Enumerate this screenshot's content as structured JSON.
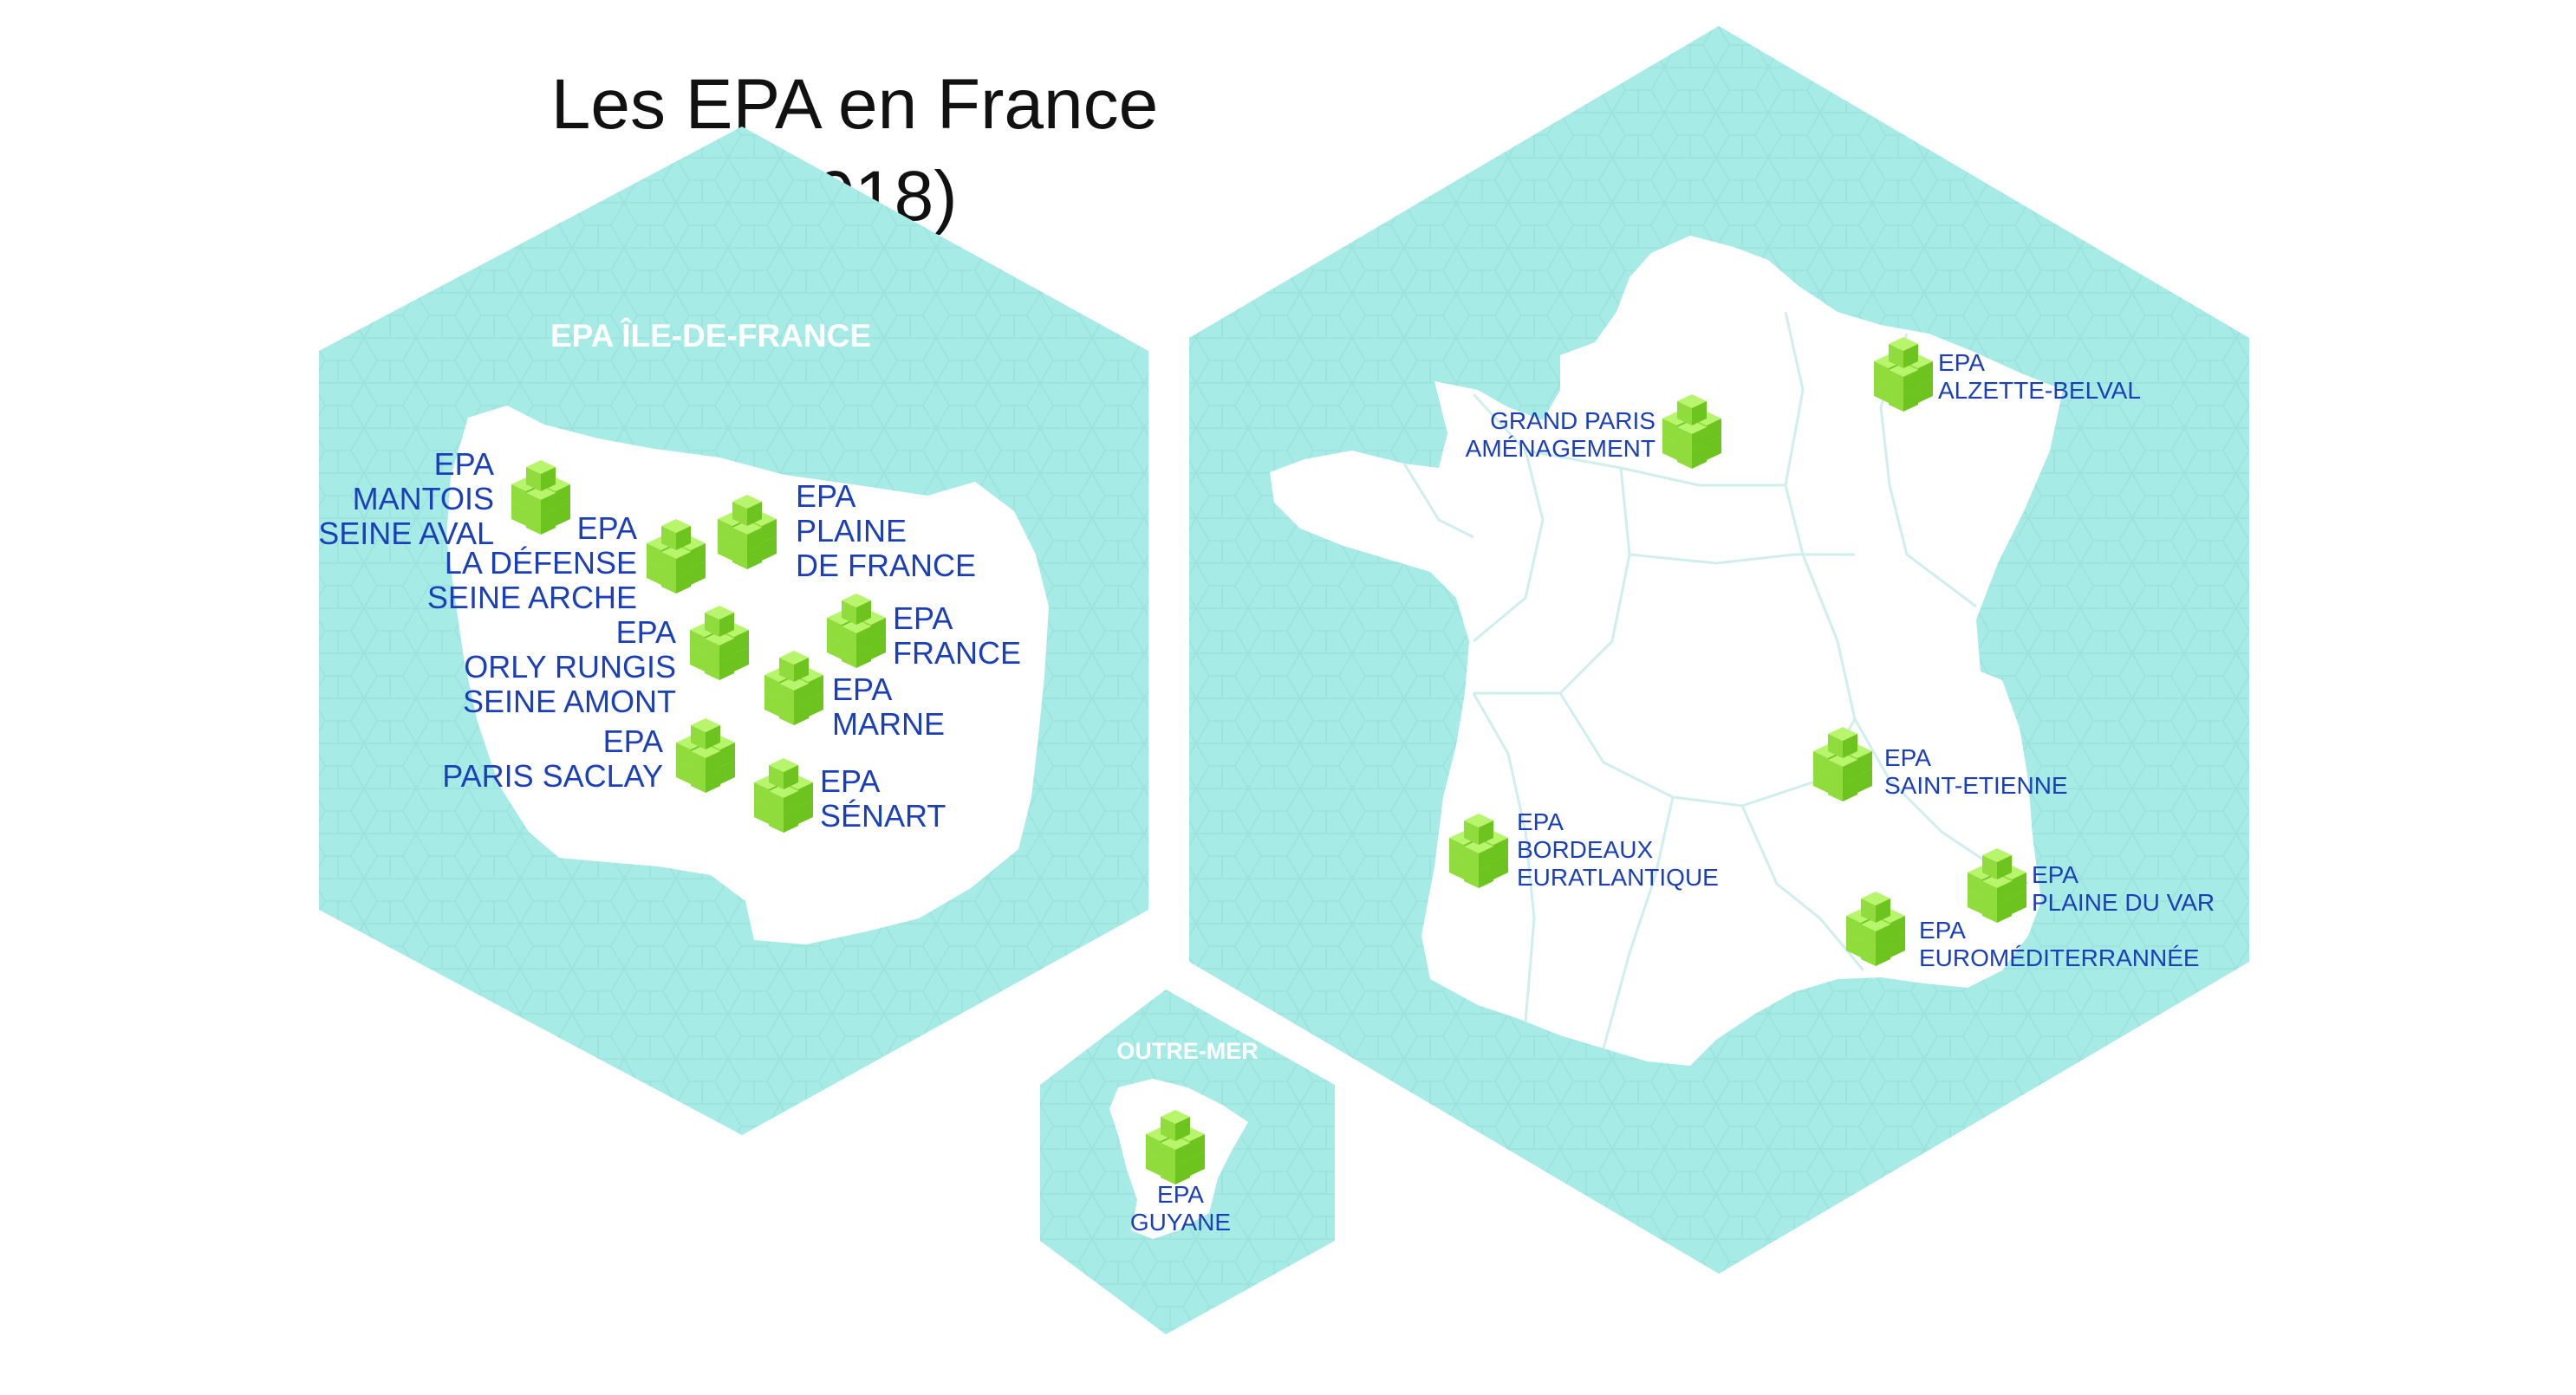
{
  "title": {
    "line1": "Les EPA en France",
    "line2": "(2018)"
  },
  "colors": {
    "hexagon": "#a6ebe6",
    "hex_pattern": "#92dbd6",
    "land": "#ffffff",
    "border": "#cfeeed",
    "label": "#1a3fb8",
    "cube_top": "#b7f56d",
    "cube_left": "#8fdc3c",
    "cube_right": "#6ec41f",
    "region_title": "#ffffff"
  },
  "icons": {
    "marker": "stacked-green-cubes-icon"
  },
  "panels": {
    "ile_de_france": {
      "title": "EPA ÎLE-DE-FRANCE",
      "epas": [
        {
          "id": "mantois",
          "lines": [
            "EPA",
            "MANTOIS",
            "SEINE AVAL"
          ]
        },
        {
          "id": "la-defense",
          "lines": [
            "EPA",
            "LA DÉFENSE",
            "SEINE ARCHE"
          ]
        },
        {
          "id": "plaine-de-france",
          "lines": [
            "EPA",
            "PLAINE",
            "DE FRANCE"
          ]
        },
        {
          "id": "epa-france",
          "lines": [
            "EPA",
            "FRANCE"
          ]
        },
        {
          "id": "orly-rungis",
          "lines": [
            "EPA",
            "ORLY RUNGIS",
            "SEINE AMONT"
          ]
        },
        {
          "id": "marne",
          "lines": [
            "EPA",
            "MARNE"
          ]
        },
        {
          "id": "paris-saclay",
          "lines": [
            "EPA",
            "PARIS SACLAY"
          ]
        },
        {
          "id": "senart",
          "lines": [
            "EPA",
            "SÉNART"
          ]
        }
      ]
    },
    "france": {
      "epas": [
        {
          "id": "grand-paris",
          "lines": [
            "GRAND PARIS",
            "AMÉNAGEMENT"
          ]
        },
        {
          "id": "alzette-belval",
          "lines": [
            "EPA",
            "ALZETTE-BELVAL"
          ]
        },
        {
          "id": "saint-etienne",
          "lines": [
            "EPA",
            "SAINT-ETIENNE"
          ]
        },
        {
          "id": "bordeaux",
          "lines": [
            "EPA",
            "BORDEAUX",
            "EURATLANTIQUE"
          ]
        },
        {
          "id": "plaine-du-var",
          "lines": [
            "EPA",
            "PLAINE DU VAR"
          ]
        },
        {
          "id": "euromediterranee",
          "lines": [
            "EPA",
            "EUROMÉDITERRANNÉE"
          ]
        }
      ]
    },
    "outre_mer": {
      "title": "OUTRE-MER",
      "epas": [
        {
          "id": "guyane",
          "lines": [
            "EPA",
            "GUYANE"
          ]
        }
      ]
    }
  }
}
